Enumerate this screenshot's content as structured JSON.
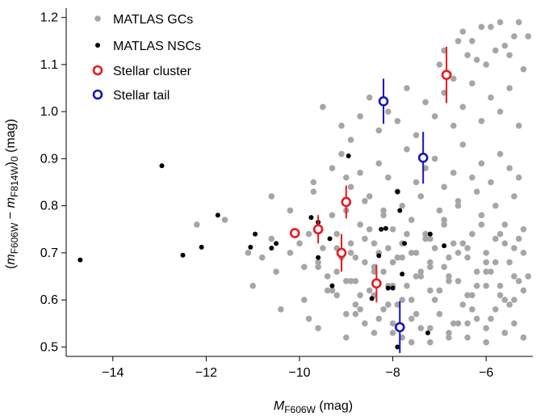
{
  "chart_data": {
    "type": "scatter",
    "xlabel_main": "M",
    "xlabel_sub": "F606W",
    "xlabel_unit": " (mag)",
    "ylabel_parts": {
      "open": "(",
      "m1": "m",
      "sub1": "F606W",
      "minus": " − ",
      "m2": "m",
      "sub2": "F814W",
      "close": ")",
      "sub0": "0",
      "unit": " (mag)"
    },
    "xlim": [
      -15.0,
      -5.0
    ],
    "ylim": [
      0.48,
      1.22
    ],
    "x_ticks": [
      -14,
      -12,
      -10,
      -8,
      -6
    ],
    "x_tick_labels": [
      "−14",
      "−12",
      "−10",
      "−8",
      "−6"
    ],
    "y_ticks": [
      0.5,
      0.6,
      0.7,
      0.8,
      0.9,
      1.0,
      1.1,
      1.2
    ],
    "y_tick_labels": [
      "0.5",
      "0.6",
      "0.7",
      "0.8",
      "0.9",
      "1.0",
      "1.1",
      "1.2"
    ],
    "legend": [
      {
        "label": "MATLAS GCs",
        "marker": "dot",
        "color": "#a6a6a6"
      },
      {
        "label": "MATLAS NSCs",
        "marker": "dot",
        "color": "#000000"
      },
      {
        "label": "Stellar cluster",
        "marker": "ring",
        "color": "#e8191f"
      },
      {
        "label": "Stellar tail",
        "marker": "ring",
        "color": "#1414c8"
      }
    ],
    "colors": {
      "gc": "#a6a6a6",
      "nsc": "#000000",
      "cluster": "#e8191f",
      "tail": "#1414c8"
    },
    "series": [
      {
        "name": "MATLAS GCs",
        "x": [
          -12.2,
          -11.6,
          -11.1,
          -11.0,
          -10.8,
          -10.6,
          -10.6,
          -10.4,
          -10.5,
          -10.2,
          -10.2,
          -10.0,
          -9.9,
          -9.8,
          -9.8,
          -9.7,
          -9.6,
          -9.5,
          -9.4,
          -9.3,
          -9.2,
          -9.2,
          -9.1,
          -9.0,
          -9.0,
          -8.9,
          -8.9,
          -8.8,
          -8.7,
          -8.6,
          -8.5,
          -8.4,
          -8.3,
          -8.2,
          -8.1,
          -8.0,
          -7.9,
          -7.8,
          -7.7,
          -7.6,
          -7.5,
          -7.4,
          -7.3,
          -7.2,
          -7.1,
          -7.0,
          -6.9,
          -6.8,
          -6.7,
          -6.6,
          -6.5,
          -6.4,
          -6.3,
          -6.2,
          -6.1,
          -6.0,
          -5.9,
          -5.8,
          -5.7,
          -5.6,
          -5.5,
          -5.4,
          -5.3,
          -5.2,
          -9.9,
          -9.6,
          -9.4,
          -9.2,
          -9.0,
          -8.8,
          -8.6,
          -8.4,
          -8.2,
          -8.0,
          -7.8,
          -7.6,
          -7.4,
          -7.2,
          -7.0,
          -6.8,
          -6.6,
          -6.4,
          -6.2,
          -6.0,
          -5.8,
          -5.6,
          -5.4,
          -5.2,
          -9.7,
          -9.3,
          -9.1,
          -8.9,
          -8.7,
          -8.5,
          -8.3,
          -8.1,
          -7.9,
          -7.7,
          -7.5,
          -7.3,
          -7.1,
          -6.9,
          -6.7,
          -6.5,
          -6.3,
          -6.1,
          -5.9,
          -5.7,
          -5.5,
          -5.3,
          -9.5,
          -9.1,
          -8.9,
          -8.7,
          -8.5,
          -8.3,
          -8.1,
          -7.9,
          -7.7,
          -7.5,
          -7.3,
          -7.1,
          -6.9,
          -6.7,
          -6.5,
          -6.3,
          -6.1,
          -5.9,
          -5.7,
          -5.5,
          -5.3,
          -8.8,
          -8.6,
          -8.4,
          -8.2,
          -8.0,
          -7.8,
          -7.6,
          -7.4,
          -7.2,
          -7.0,
          -6.8,
          -6.6,
          -6.4,
          -6.2,
          -6.0,
          -5.8,
          -5.6,
          -5.4,
          -5.2,
          -8.9,
          -8.5,
          -8.1,
          -7.7,
          -7.3,
          -6.9,
          -6.5,
          -6.1,
          -5.7,
          -5.3,
          -9.0,
          -8.6,
          -8.2,
          -7.8,
          -7.4,
          -7.0,
          -6.6,
          -6.2,
          -5.8,
          -5.4,
          -8.7,
          -8.3,
          -7.9,
          -7.5,
          -7.1,
          -6.7,
          -6.3,
          -5.9,
          -5.5,
          -6.8,
          -6.4,
          -6.0,
          -5.6,
          -5.2,
          -6.6,
          -6.2,
          -5.8,
          -5.4,
          -6.5,
          -6.1,
          -5.7,
          -5.3,
          -7.0,
          -6.9,
          -6.7,
          -6.3,
          -5.9,
          -5.5,
          -5.1,
          -9.3,
          -9.0,
          -8.7,
          -8.4,
          -8.1,
          -7.8,
          -7.5,
          -7.2,
          -6.9,
          -6.6,
          -6.3,
          -6.0,
          -5.7,
          -5.4,
          -5.1,
          -8.0,
          -7.6,
          -7.2,
          -6.8,
          -6.4,
          -6.0,
          -5.6,
          -5.2,
          -9.6,
          -9.2,
          -8.8,
          -8.4,
          -8.0,
          -7.6,
          -7.2,
          -6.8,
          -6.4,
          -6.0,
          -5.6,
          -5.2
        ],
        "y": [
          0.76,
          0.77,
          0.7,
          0.63,
          0.69,
          0.73,
          0.82,
          0.58,
          0.66,
          0.79,
          0.7,
          0.72,
          0.67,
          0.74,
          0.56,
          0.83,
          0.68,
          0.71,
          0.62,
          0.78,
          0.74,
          0.66,
          0.69,
          0.86,
          0.52,
          0.64,
          0.7,
          0.57,
          0.76,
          0.73,
          0.62,
          0.67,
          0.7,
          0.79,
          0.59,
          0.75,
          0.69,
          0.72,
          0.63,
          0.77,
          0.7,
          0.66,
          0.74,
          0.68,
          0.71,
          0.62,
          0.76,
          0.65,
          0.72,
          0.8,
          0.59,
          0.69,
          0.74,
          0.63,
          0.78,
          0.7,
          0.66,
          0.73,
          0.61,
          0.76,
          0.68,
          0.71,
          0.64,
          0.75,
          0.6,
          0.54,
          0.65,
          0.61,
          0.57,
          0.59,
          0.55,
          0.53,
          0.58,
          0.55,
          0.52,
          0.56,
          0.54,
          0.51,
          0.57,
          0.53,
          0.55,
          0.52,
          0.56,
          0.54,
          0.58,
          0.53,
          0.55,
          0.52,
          0.85,
          0.88,
          0.91,
          0.84,
          0.87,
          0.82,
          0.89,
          0.86,
          0.83,
          0.92,
          0.85,
          0.88,
          0.9,
          0.84,
          0.87,
          0.93,
          0.86,
          0.89,
          0.85,
          0.91,
          0.88,
          0.86,
          1.01,
          0.97,
          0.94,
          0.99,
          1.03,
          0.96,
          1.0,
          0.98,
          1.05,
          0.95,
          1.02,
          0.99,
          1.04,
          0.97,
          1.01,
          1.06,
          0.98,
          1.03,
          1.0,
          1.05,
          0.97,
          0.64,
          0.68,
          0.61,
          0.66,
          0.63,
          0.69,
          0.6,
          0.65,
          0.67,
          0.62,
          0.64,
          0.7,
          0.61,
          0.66,
          0.63,
          0.68,
          0.6,
          0.65,
          0.62,
          0.72,
          0.75,
          0.71,
          0.74,
          0.73,
          0.77,
          0.72,
          0.76,
          0.74,
          0.73,
          0.79,
          0.81,
          0.78,
          0.8,
          0.82,
          0.79,
          0.81,
          0.83,
          0.8,
          0.82,
          0.58,
          0.56,
          0.59,
          0.57,
          0.6,
          0.55,
          0.58,
          0.56,
          0.59,
          1.08,
          1.12,
          1.1,
          1.14,
          1.09,
          1.15,
          1.11,
          1.13,
          1.16,
          1.17,
          1.18,
          1.19,
          1.19,
          1.1,
          1.13,
          1.07,
          1.15,
          1.18,
          1.12,
          1.16,
          0.62,
          0.64,
          0.61,
          0.66,
          0.63,
          0.6,
          0.65,
          0.62,
          0.67,
          0.64,
          0.61,
          0.66,
          0.63,
          0.6,
          0.65,
          0.53,
          0.51,
          0.54,
          0.52,
          0.55,
          0.51,
          0.53,
          0.52,
          0.67,
          0.71,
          0.69,
          0.72,
          0.68,
          0.7,
          0.73,
          0.69,
          0.71,
          0.68,
          0.72,
          0.7
        ]
      },
      {
        "name": "MATLAS NSCs",
        "x": [
          -14.7,
          -12.95,
          -12.5,
          -12.1,
          -11.75,
          -11.05,
          -10.95,
          -10.6,
          -10.5,
          -9.75,
          -9.6,
          -9.6,
          -9.35,
          -9.3,
          -8.95,
          -8.45,
          -8.3,
          -8.25,
          -8.15,
          -8.1,
          -8.0,
          -7.9,
          -7.85,
          -7.8,
          -7.75,
          -7.2,
          -6.9,
          -7.25,
          -7.9
        ],
        "y": [
          0.685,
          0.885,
          0.695,
          0.712,
          0.78,
          0.712,
          0.74,
          0.71,
          0.72,
          0.775,
          0.69,
          0.765,
          0.73,
          0.63,
          0.906,
          0.603,
          0.694,
          0.75,
          0.752,
          0.625,
          0.625,
          0.83,
          0.79,
          0.655,
          0.72,
          0.74,
          0.715,
          0.53,
          0.5
        ]
      },
      {
        "name": "Stellar cluster",
        "points": [
          {
            "x": -10.1,
            "y": 0.742,
            "err": 0.01
          },
          {
            "x": -9.6,
            "y": 0.75,
            "err": 0.03
          },
          {
            "x": -9.1,
            "y": 0.7,
            "err": 0.04
          },
          {
            "x": -9.0,
            "y": 0.808,
            "err": 0.035
          },
          {
            "x": -8.35,
            "y": 0.635,
            "err": 0.04
          },
          {
            "x": -6.85,
            "y": 1.078,
            "err": 0.06
          }
        ]
      },
      {
        "name": "Stellar tail",
        "points": [
          {
            "x": -8.2,
            "y": 1.022,
            "err": 0.048
          },
          {
            "x": -7.35,
            "y": 0.902,
            "err": 0.055
          },
          {
            "x": -7.85,
            "y": 0.542,
            "err": 0.055
          }
        ]
      }
    ]
  }
}
